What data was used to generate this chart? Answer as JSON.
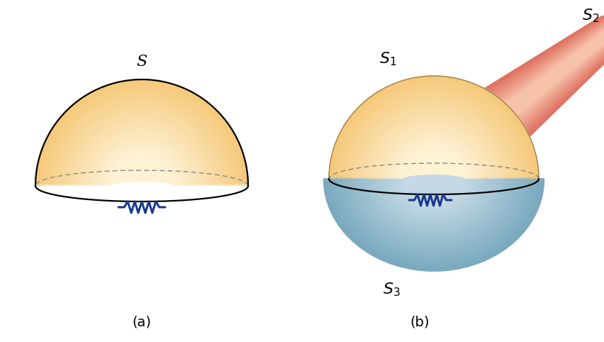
{
  "fig_width": 8.53,
  "fig_height": 4.82,
  "background_color": "#ffffff",
  "label_a": "(a)",
  "label_b": "(b)",
  "label_S": "S",
  "label_S1": "$S_1$",
  "label_S2": "$S_2$",
  "label_S3": "$S_3$",
  "dome_outer": "#f5c97a",
  "dome_inner": "#fef3d8",
  "resistor_color": "#1a3a8a",
  "bowl_outer": "#7aaabf",
  "bowl_inner": "#c8dce8",
  "tube_outer": "#e07060",
  "tube_inner": "#f8c8b0",
  "font_size": 15
}
